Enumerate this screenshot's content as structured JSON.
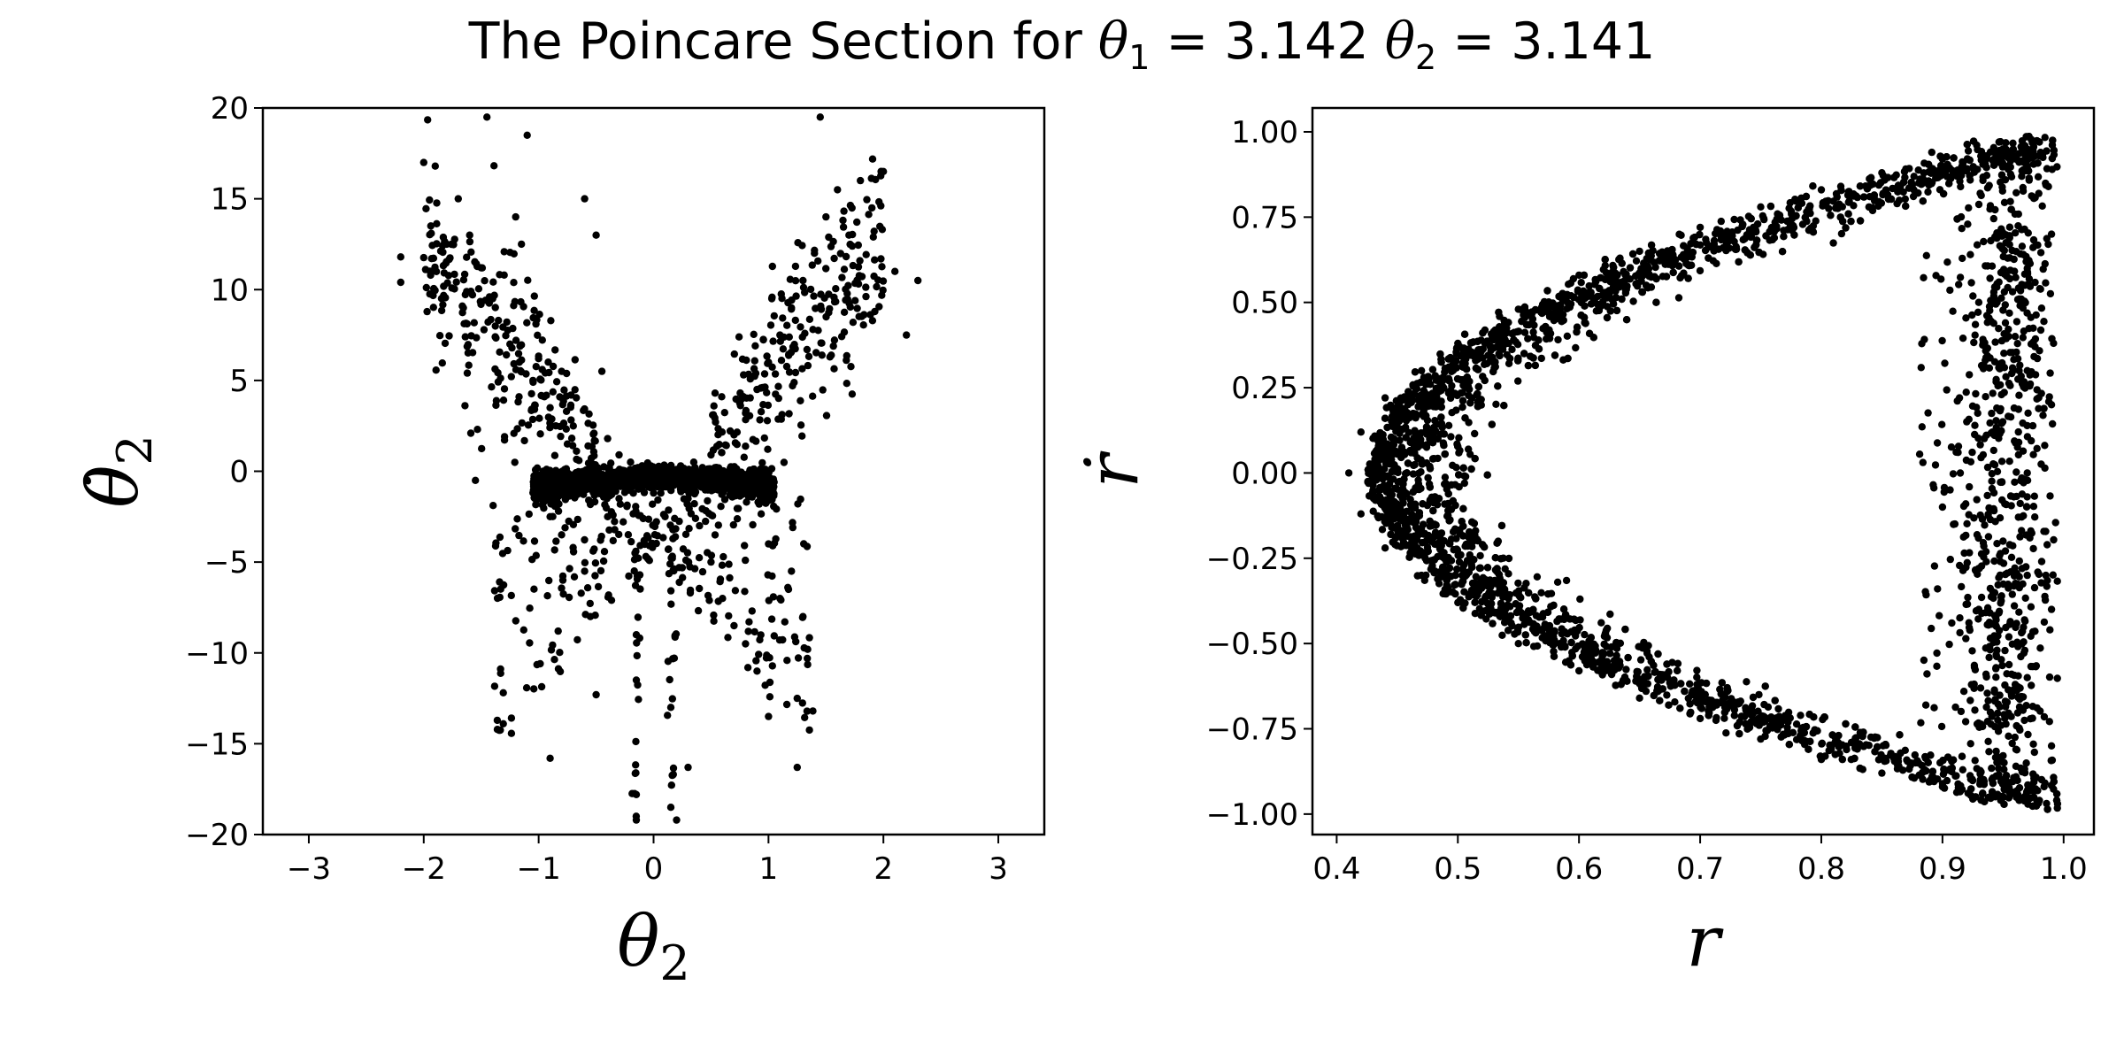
{
  "figure": {
    "title_prefix": "The Poincare Section for ",
    "title_theta1_symbol": "θ",
    "title_theta1_sub": "1",
    "title_theta1_value": " = 3.142 ",
    "title_theta2_symbol": "θ",
    "title_theta2_sub": "2",
    "title_theta2_value": " = 3.141"
  },
  "colors": {
    "points": "#000000",
    "axes": "#000000",
    "background": "#ffffff"
  },
  "chart_data": [
    {
      "type": "scatter",
      "xlabel": "θ2",
      "ylabel": "θ̇2",
      "xlim": [
        -3.4,
        3.4
      ],
      "ylim": [
        -20,
        20
      ],
      "xticks": [
        -3,
        -2,
        -1,
        0,
        1,
        2,
        3
      ],
      "xtick_labels": [
        "−3",
        "−2",
        "−1",
        "0",
        "1",
        "2",
        "3"
      ],
      "yticks": [
        -20,
        -15,
        -10,
        -5,
        0,
        5,
        10,
        15,
        20
      ],
      "ytick_labels": [
        "−20",
        "−15",
        "−10",
        "−5",
        "0",
        "5",
        "10",
        "15",
        "20"
      ],
      "grid": false,
      "series": [
        {
          "shape": "butterfly-chaotic-section",
          "points": [
            [
              -2.2,
              11.8
            ],
            [
              -2.2,
              10.4
            ],
            [
              -2.0,
              17.0
            ],
            [
              -1.9,
              16.8
            ],
            [
              -1.8,
              12.5
            ],
            [
              -1.7,
              15.0
            ],
            [
              -1.6,
              13.0
            ],
            [
              -1.5,
              11.2
            ],
            [
              -1.45,
              19.5
            ],
            [
              -1.4,
              9.5
            ],
            [
              -1.35,
              8.3
            ],
            [
              -1.3,
              10.8
            ],
            [
              -1.25,
              7.0
            ],
            [
              -1.2,
              14.0
            ],
            [
              -1.15,
              12.5
            ],
            [
              -1.1,
              18.5
            ],
            [
              -1.05,
              5.0
            ],
            [
              -1.0,
              6.2
            ],
            [
              -0.95,
              4.1
            ],
            [
              -0.9,
              3.5
            ],
            [
              -0.85,
              2.5
            ],
            [
              -0.8,
              5.5
            ],
            [
              -0.75,
              1.5
            ],
            [
              -0.6,
              15.0
            ],
            [
              -0.5,
              13.0
            ],
            [
              -0.45,
              5.5
            ],
            [
              -0.4,
              1.8
            ],
            [
              -0.3,
              0.9
            ],
            [
              -0.2,
              0.5
            ],
            [
              -0.1,
              0.3
            ],
            [
              0.0,
              0.0
            ],
            [
              0.1,
              -0.2
            ],
            [
              0.2,
              0.1
            ],
            [
              0.35,
              0.5
            ],
            [
              0.5,
              0.9
            ],
            [
              0.7,
              2.0
            ],
            [
              0.8,
              3.2
            ],
            [
              0.9,
              4.5
            ],
            [
              1.0,
              6.0
            ],
            [
              1.1,
              7.5
            ],
            [
              1.2,
              9.0
            ],
            [
              1.3,
              10.5
            ],
            [
              1.4,
              12.0
            ],
            [
              1.45,
              19.5
            ],
            [
              1.5,
              14.0
            ],
            [
              1.6,
              15.5
            ],
            [
              1.7,
              13.0
            ],
            [
              1.8,
              16.0
            ],
            [
              1.9,
              14.5
            ],
            [
              2.0,
              16.5
            ],
            [
              2.1,
              11.0
            ],
            [
              2.2,
              7.5
            ],
            [
              2.3,
              10.5
            ],
            [
              -1.55,
              -0.5
            ],
            [
              -1.0,
              -1.5
            ],
            [
              -0.9,
              -2.5
            ],
            [
              -0.8,
              -3.5
            ],
            [
              -0.7,
              -4.2
            ],
            [
              -0.6,
              -5.5
            ],
            [
              -0.55,
              -8.0
            ],
            [
              -0.5,
              -12.3
            ],
            [
              -0.4,
              -2.5
            ],
            [
              -0.3,
              -1.5
            ],
            [
              -0.2,
              -0.9
            ],
            [
              -0.15,
              -9.0
            ],
            [
              -0.15,
              -11.5
            ],
            [
              -0.15,
              -17.8
            ],
            [
              -0.15,
              -19.2
            ],
            [
              0.0,
              -1.2
            ],
            [
              0.1,
              -2.5
            ],
            [
              0.15,
              -13.0
            ],
            [
              0.15,
              -18.5
            ],
            [
              0.2,
              -19.2
            ],
            [
              0.3,
              -1.5
            ],
            [
              0.4,
              -3.0
            ],
            [
              0.5,
              -5.0
            ],
            [
              0.6,
              -7.0
            ],
            [
              0.7,
              -8.5
            ],
            [
              0.8,
              -9.5
            ],
            [
              0.9,
              -11.0
            ],
            [
              1.0,
              -4.0
            ],
            [
              1.1,
              -7.0
            ],
            [
              1.2,
              -5.5
            ],
            [
              1.25,
              -12.5
            ],
            [
              1.25,
              -16.3
            ],
            [
              1.3,
              -8.0
            ],
            [
              -0.9,
              -15.8
            ],
            [
              0.3,
              -16.3
            ],
            [
              1.0,
              -13.5
            ]
          ]
        }
      ]
    },
    {
      "type": "scatter",
      "xlabel": "r",
      "ylabel": "ṙ",
      "xlim": [
        0.38,
        1.025
      ],
      "ylim": [
        -1.06,
        1.07
      ],
      "xticks": [
        0.4,
        0.5,
        0.6,
        0.7,
        0.8,
        0.9,
        1.0
      ],
      "xtick_labels": [
        "0.4",
        "0.5",
        "0.6",
        "0.7",
        "0.8",
        "0.9",
        "1.0"
      ],
      "yticks": [
        -1.0,
        -0.75,
        -0.5,
        -0.25,
        0.0,
        0.25,
        0.5,
        0.75,
        1.0
      ],
      "ytick_labels": [
        "−1.00",
        "−0.75",
        "−0.50",
        "−0.25",
        "0.00",
        "0.25",
        "0.50",
        "0.75",
        "1.00"
      ],
      "grid": false,
      "series": [
        {
          "shape": "parabolic-band-opening-right",
          "points": [
            [
              0.41,
              0.0
            ],
            [
              0.42,
              0.12
            ],
            [
              0.42,
              -0.12
            ],
            [
              0.44,
              0.22
            ],
            [
              0.44,
              -0.22
            ],
            [
              0.47,
              0.3
            ],
            [
              0.47,
              -0.3
            ],
            [
              0.5,
              0.38
            ],
            [
              0.5,
              -0.38
            ],
            [
              0.55,
              0.48
            ],
            [
              0.55,
              -0.5
            ],
            [
              0.6,
              0.58
            ],
            [
              0.6,
              -0.58
            ],
            [
              0.65,
              0.65
            ],
            [
              0.65,
              -0.66
            ],
            [
              0.7,
              0.72
            ],
            [
              0.7,
              -0.72
            ],
            [
              0.75,
              0.78
            ],
            [
              0.75,
              -0.78
            ],
            [
              0.8,
              0.83
            ],
            [
              0.8,
              -0.84
            ],
            [
              0.85,
              0.88
            ],
            [
              0.85,
              -0.88
            ],
            [
              0.9,
              0.92
            ],
            [
              0.9,
              -0.92
            ],
            [
              0.95,
              0.95
            ],
            [
              0.95,
              -0.95
            ],
            [
              0.98,
              0.97
            ],
            [
              0.98,
              -0.96
            ],
            [
              0.97,
              0.6
            ],
            [
              0.97,
              0.3
            ],
            [
              0.97,
              0.0
            ],
            [
              0.97,
              -0.3
            ],
            [
              0.97,
              -0.6
            ],
            [
              0.99,
              0.2
            ],
            [
              0.99,
              -0.4
            ],
            [
              0.99,
              0.7
            ],
            [
              0.99,
              -0.8
            ],
            [
              0.93,
              0.5
            ],
            [
              0.93,
              -0.4
            ],
            [
              0.92,
              0.15
            ],
            [
              0.9,
              -0.1
            ],
            [
              0.95,
              -0.2
            ],
            [
              0.96,
              0.4
            ]
          ]
        }
      ]
    }
  ]
}
